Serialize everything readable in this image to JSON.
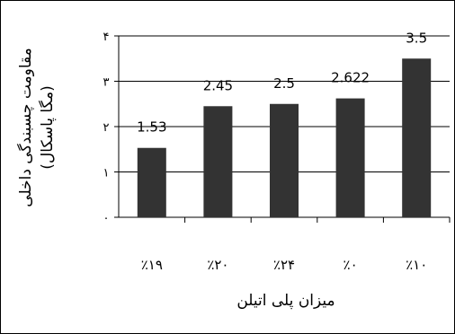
{
  "chart_data": {
    "type": "bar",
    "categories": [
      "٪۱۹",
      "٪۲۰",
      "٪۲۴",
      "٪۰",
      "٪۱۰"
    ],
    "values": [
      1.53,
      2.45,
      2.5,
      2.622,
      3.5
    ],
    "value_labels": [
      "1.53",
      "2.45",
      "2.5",
      "2.622",
      "3.5"
    ],
    "yticks": [
      "۰",
      "۱",
      "۲",
      "۳",
      "۴"
    ],
    "ylim": [
      0,
      4
    ],
    "xlabel": "میزان پلی اتیلن",
    "ylabel_line1": "مقاومت چسبندگی داخلی",
    "ylabel_line2": "(مگا پاسکال)",
    "grid": "horizontal",
    "legend": "none",
    "colors": {
      "bar": "#333333",
      "plot_bg": "#ffffff",
      "page_bg": "#ffffff"
    }
  }
}
